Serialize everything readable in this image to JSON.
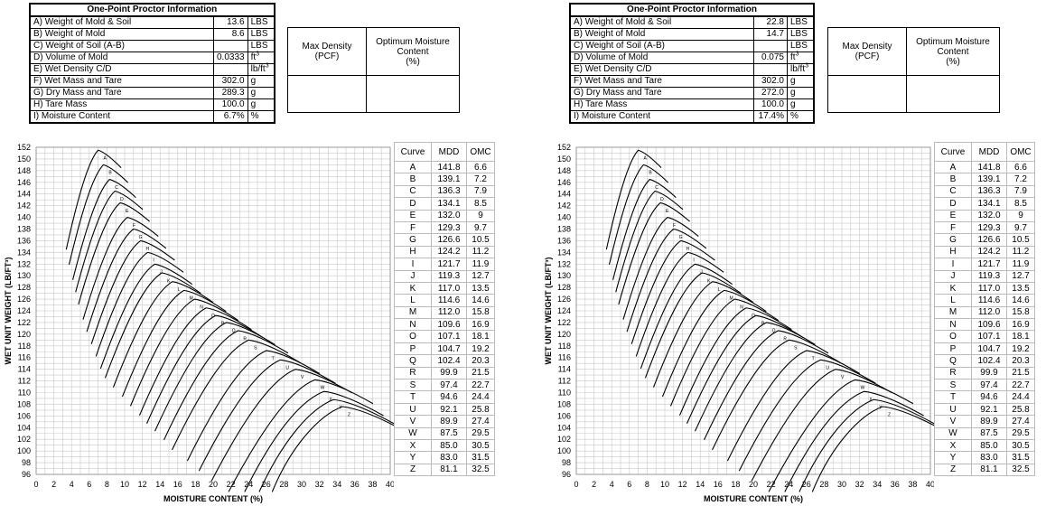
{
  "panels": [
    {
      "info": {
        "title": "One-Point Proctor Information",
        "rows": [
          {
            "label": "A) Weight of Mold & Soil",
            "value": "13.6",
            "unit": "LBS"
          },
          {
            "label": "B) Weight of Mold",
            "value": "8.6",
            "unit": "LBS"
          },
          {
            "label": "C) Weight of Soil (A-B)",
            "value": "",
            "unit": "LBS"
          },
          {
            "label": "D) Volume of Mold",
            "value": "0.0333",
            "unit": "ft",
            "unit_sup": "3"
          },
          {
            "label": "E) Wet Density C/D",
            "value": "",
            "unit": "lb/ft",
            "unit_sup": "3"
          },
          {
            "label": "F) Wet Mass and Tare",
            "value": "302.0",
            "unit": "g"
          },
          {
            "label": "G) Dry Mass and Tare",
            "value": "289.3",
            "unit": "g"
          },
          {
            "label": "H) Tare Mass",
            "value": "100.0",
            "unit": "g"
          },
          {
            "label": "I) Moisture Content",
            "value": "6.7%",
            "unit": "%"
          }
        ]
      },
      "result": {
        "max_density": "Max Density",
        "max_density_unit": "(PCF)",
        "omc": "Optimum Moisture Content",
        "omc_unit": "(%)"
      }
    },
    {
      "info": {
        "title": "One-Point Proctor Information",
        "rows": [
          {
            "label": "A) Weight of Mold & Soil",
            "value": "22.8",
            "unit": "LBS"
          },
          {
            "label": "B) Weight of Mold",
            "value": "14.7",
            "unit": "LBS"
          },
          {
            "label": "C) Weight of Soil (A-B)",
            "value": "",
            "unit": "LBS"
          },
          {
            "label": "D) Volume of Mold",
            "value": "0.075",
            "unit": "ft",
            "unit_sup": "3"
          },
          {
            "label": "E) Wet Density C/D",
            "value": "",
            "unit": "lb/ft",
            "unit_sup": "3"
          },
          {
            "label": "F) Wet Mass and Tare",
            "value": "302.0",
            "unit": "g"
          },
          {
            "label": "G) Dry Mass and Tare",
            "value": "272.0",
            "unit": "g"
          },
          {
            "label": "H) Tare Mass",
            "value": "100.0",
            "unit": "g"
          },
          {
            "label": "I) Moisture Content",
            "value": "17.4%",
            "unit": "%"
          }
        ]
      },
      "result": {
        "max_density": "Max Density",
        "max_density_unit": "(PCF)",
        "omc": "Optimum Moisture Content",
        "omc_unit": "(%)"
      }
    }
  ],
  "chart": {
    "xlabel": "MOISTURE CONTENT (%)",
    "ylabel": "WET UNIT WEIGHT (LB/FT³)",
    "xlim": [
      0,
      40
    ],
    "ylim": [
      96,
      152
    ],
    "x_ticks": [
      "0",
      "2",
      "4",
      "6",
      "8",
      "10",
      "12",
      "14",
      "16",
      "18",
      "20",
      "22",
      "24",
      "26",
      "28",
      "30",
      "32",
      "34",
      "36",
      "38",
      "40"
    ],
    "y_ticks": [
      "152",
      "150",
      "148",
      "146",
      "144",
      "142",
      "140",
      "138",
      "136",
      "134",
      "132",
      "130",
      "128",
      "126",
      "124",
      "122",
      "120",
      "118",
      "116",
      "114",
      "112",
      "110",
      "108",
      "106",
      "104",
      "102",
      "100",
      "98",
      "96"
    ]
  },
  "curve_table": {
    "headers": [
      "Curve",
      "MDD",
      "OMC"
    ],
    "rows": [
      [
        "A",
        "141.8",
        "6.6"
      ],
      [
        "B",
        "139.1",
        "7.2"
      ],
      [
        "C",
        "136.3",
        "7.9"
      ],
      [
        "D",
        "134.1",
        "8.5"
      ],
      [
        "E",
        "132.0",
        "9"
      ],
      [
        "F",
        "129.3",
        "9.7"
      ],
      [
        "G",
        "126.6",
        "10.5"
      ],
      [
        "H",
        "124.2",
        "11.2"
      ],
      [
        "I",
        "121.7",
        "11.9"
      ],
      [
        "J",
        "119.3",
        "12.7"
      ],
      [
        "K",
        "117.0",
        "13.5"
      ],
      [
        "L",
        "114.6",
        "14.6"
      ],
      [
        "M",
        "112.0",
        "15.8"
      ],
      [
        "N",
        "109.6",
        "16.9"
      ],
      [
        "O",
        "107.1",
        "18.1"
      ],
      [
        "P",
        "104.7",
        "19.2"
      ],
      [
        "Q",
        "102.4",
        "20.3"
      ],
      [
        "R",
        "99.9",
        "21.5"
      ],
      [
        "S",
        "97.4",
        "22.7"
      ],
      [
        "T",
        "94.6",
        "24.4"
      ],
      [
        "U",
        "92.1",
        "25.8"
      ],
      [
        "V",
        "89.9",
        "27.4"
      ],
      [
        "W",
        "87.5",
        "29.5"
      ],
      [
        "X",
        "85.0",
        "30.5"
      ],
      [
        "Y",
        "83.0",
        "31.5"
      ],
      [
        "Z",
        "81.1",
        "32.5"
      ]
    ]
  },
  "chart_data": {
    "type": "line",
    "title": "",
    "xlabel": "MOISTURE CONTENT (%)",
    "ylabel": "WET UNIT WEIGHT (LB/FT³)",
    "xlim": [
      0,
      40
    ],
    "ylim": [
      96,
      152
    ],
    "grid": true,
    "series": [
      {
        "name": "A",
        "peak": [
          7.0,
          151.5
        ]
      },
      {
        "name": "B",
        "peak": [
          7.6,
          149.0
        ]
      },
      {
        "name": "C",
        "peak": [
          8.3,
          146.5
        ]
      },
      {
        "name": "D",
        "peak": [
          8.9,
          144.5
        ]
      },
      {
        "name": "E",
        "peak": [
          9.5,
          142.5
        ]
      },
      {
        "name": "F",
        "peak": [
          10.3,
          140.0
        ]
      },
      {
        "name": "G",
        "peak": [
          11.0,
          138.0
        ]
      },
      {
        "name": "H",
        "peak": [
          11.8,
          136.0
        ]
      },
      {
        "name": "I",
        "peak": [
          12.6,
          134.0
        ]
      },
      {
        "name": "J",
        "peak": [
          13.4,
          132.0
        ]
      },
      {
        "name": "K",
        "peak": [
          14.2,
          130.5
        ]
      },
      {
        "name": "L",
        "peak": [
          15.4,
          129.0
        ]
      },
      {
        "name": "M",
        "peak": [
          16.7,
          127.5
        ]
      },
      {
        "name": "N",
        "peak": [
          17.9,
          126.0
        ]
      },
      {
        "name": "O",
        "peak": [
          19.2,
          124.5
        ]
      },
      {
        "name": "P",
        "peak": [
          20.3,
          123.2
        ]
      },
      {
        "name": "Q",
        "peak": [
          21.5,
          122.0
        ]
      },
      {
        "name": "R",
        "peak": [
          22.8,
          120.6
        ]
      },
      {
        "name": "S",
        "peak": [
          24.0,
          119.0
        ]
      },
      {
        "name": "T",
        "peak": [
          26.0,
          117.2
        ]
      },
      {
        "name": "U",
        "peak": [
          27.6,
          115.6
        ]
      },
      {
        "name": "V",
        "peak": [
          29.3,
          114.0
        ]
      },
      {
        "name": "W",
        "peak": [
          31.5,
          112.2
        ]
      },
      {
        "name": "X",
        "peak": [
          32.5,
          110.2
        ]
      },
      {
        "name": "Y",
        "peak": [
          33.6,
          108.8
        ]
      },
      {
        "name": "Z",
        "peak": [
          34.6,
          107.6
        ]
      }
    ]
  }
}
